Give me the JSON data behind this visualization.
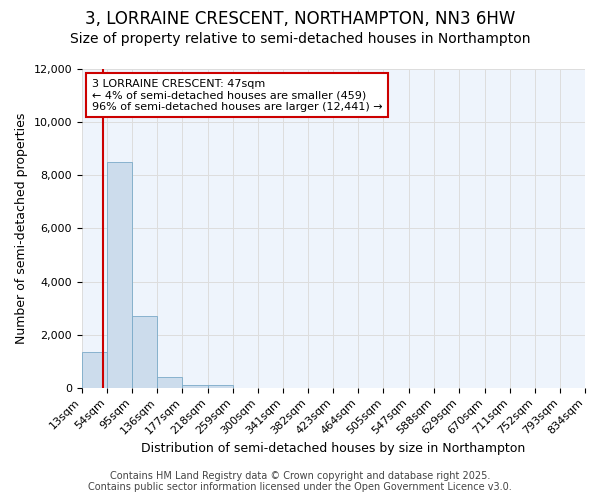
{
  "title": "3, LORRAINE CRESCENT, NORTHAMPTON, NN3 6HW",
  "subtitle": "Size of property relative to semi-detached houses in Northampton",
  "xlabel": "Distribution of semi-detached houses by size in Northampton",
  "ylabel": "Number of semi-detached properties",
  "footnote1": "Contains HM Land Registry data © Crown copyright and database right 2025.",
  "footnote2": "Contains public sector information licensed under the Open Government Licence v3.0.",
  "annotation_title": "3 LORRAINE CRESCENT: 47sqm",
  "annotation_line1": "← 4% of semi-detached houses are smaller (459)",
  "annotation_line2": "96% of semi-detached houses are larger (12,441) →",
  "property_size": 47,
  "bin_edges": [
    13,
    54,
    95,
    136,
    177,
    218,
    259,
    300,
    341,
    382,
    423,
    464,
    505,
    547,
    588,
    629,
    670,
    711,
    752,
    793,
    834
  ],
  "bar_heights": [
    1350,
    8500,
    2700,
    400,
    100,
    100,
    0,
    0,
    0,
    0,
    0,
    0,
    0,
    0,
    0,
    0,
    0,
    0,
    0,
    0
  ],
  "bar_color": "#ccdcec",
  "bar_edge_color": "#7aaac8",
  "red_line_color": "#cc0000",
  "annotation_box_edge": "#cc0000",
  "annotation_box_bg": "#ffffff",
  "ylim": [
    0,
    12000
  ],
  "yticks": [
    0,
    2000,
    4000,
    6000,
    8000,
    10000,
    12000
  ],
  "grid_color": "#dddddd",
  "bg_color": "#ffffff",
  "plot_bg_color": "#eef4fc",
  "title_fontsize": 12,
  "subtitle_fontsize": 10,
  "axis_label_fontsize": 9,
  "tick_fontsize": 8,
  "annotation_fontsize": 8,
  "footnote_fontsize": 7
}
